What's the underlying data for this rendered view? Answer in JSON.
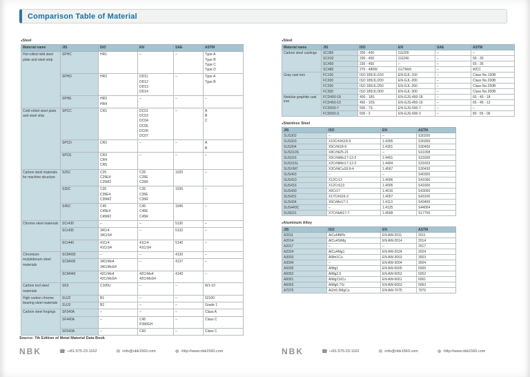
{
  "title": "Comparison Table of Material",
  "left_page": {
    "steel": {
      "section_label": "Steel",
      "headers": [
        "Material name",
        "JIS",
        "ISO",
        "EN",
        "SAE",
        "ASTM"
      ],
      "groups": [
        {
          "label": "Hot-rolled mild steel plate and steel strip",
          "rows": [
            [
              "SPHC",
              "HR1",
              "–",
              "–",
              "Type A\nType B\nType C\nType D"
            ],
            [
              "SPHD",
              "HR2",
              "DD11\nDD12\nDD13\nDD14",
              "–",
              "Type A\nType B"
            ],
            [
              "SPHE",
              "HR3\nHR4",
              "–",
              "–",
              "–"
            ]
          ]
        },
        {
          "label": "Cold-rolled steel plate and steel strip",
          "rows": [
            [
              "SPCC",
              "CR1",
              "DC01\nDC03\nDC04\nDC05\nDC06\nDC07",
              "–",
              "A\nB\nC"
            ],
            [
              "SPCD",
              "CR2",
              "–",
              "–",
              "A\nB"
            ],
            [
              "SPCE",
              "CR3\nCR4\nCR5",
              "–",
              "–",
              "–"
            ]
          ]
        },
        {
          "label": "Carbon steel materials for machine structure",
          "rows": [
            [
              "S25C",
              "C25\nC25E4\nC25M2",
              "C25\nC25E\nC25R",
              "1025",
              "–"
            ],
            [
              "S35C",
              "C35\nC35E4\nC35M2",
              "C35\nC35E\nC35R",
              "1035",
              "–"
            ],
            [
              "S45C",
              "C45\nC45E4\nC45M2",
              "C45\nC45E\nC45R",
              "1045",
              "–"
            ]
          ]
        },
        {
          "label": "Chrome steel materials",
          "rows": [
            [
              "SCr430",
              "–",
              "–",
              "5130",
              "–"
            ],
            [
              "SCr435",
              "34Cr4\n34CrS4",
              "–",
              "5132",
              "–"
            ],
            [
              "SCr440",
              "41Cr4\n41CrS4",
              "41Cr4\n41CrS4",
              "5140",
              "–"
            ]
          ]
        },
        {
          "label": "Chromium-molybdenum steel materials",
          "rows": [
            [
              "SCM430",
              "–",
              "–",
              "4130",
              "–"
            ],
            [
              "SCM435",
              "34CrMo4\n34CrMoS4",
              "–",
              "4137",
              "–"
            ],
            [
              "SCM440",
              "42CrMo4\n42CrMoS4",
              "42CrMo4\n42CrMoS4",
              "4140",
              "–"
            ]
          ]
        },
        {
          "label": "Carbon tool steel materials",
          "rows": [
            [
              "SK3",
              "C105U",
              "–",
              "–",
              "W1-10"
            ]
          ]
        },
        {
          "label": "High carbon chrome bearing steel materials",
          "rows": [
            [
              "SUJ2",
              "B1",
              "–",
              "–",
              "52100"
            ],
            [
              "SUJ3",
              "B2",
              "–",
              "–",
              "Grade 1"
            ]
          ]
        },
        {
          "label": "Carbon steel forgings",
          "rows": [
            [
              "SF340A",
              "–",
              "–",
              "–",
              "Class A"
            ],
            [
              "SF440A",
              "–",
              "C45\nP280GH",
              "–",
              "Class C"
            ],
            [
              "SF540A",
              "–",
              "C60",
              "–",
              "Class C"
            ]
          ]
        }
      ]
    }
  },
  "right_page": {
    "steel": {
      "section_label": "Steel",
      "headers": [
        "Material name",
        "JIS",
        "ISO",
        "EN",
        "SAE",
        "ASTM"
      ],
      "groups": [
        {
          "label": "Carbon steel castings",
          "rows": [
            [
              "SC360",
              "200 - 400",
              "GS200",
              "–",
              "–"
            ],
            [
              "SC410",
              "200 - 400",
              "GS240",
              "–",
              "60 - 30"
            ],
            [
              "SC450",
              "230 - 450",
              "–",
              "–",
              "65 - 35"
            ],
            [
              "SC480",
              "270 - 480W",
              "G17Mn5",
              "–",
              "WCC"
            ]
          ]
        },
        {
          "label": "Gray cast iron",
          "rows": [
            [
              "FC150",
              "ISO 185/JL/150",
              "EN-GJL-150",
              "–",
              "Class No.150B"
            ],
            [
              "FC200",
              "ISO 185/JL/200",
              "EN-GJL-200",
              "–",
              "Class No.200B"
            ],
            [
              "FC250",
              "ISO 185/JL/250",
              "EN-GJL-250",
              "–",
              "Class No.250B"
            ],
            [
              "FC300",
              "ISO 185/JL/300",
              "EN-GJL-300",
              "–",
              "Class No.300B"
            ]
          ]
        },
        {
          "label": "Nodular graphite cast iron",
          "rows": [
            [
              "FCD400-18",
              "400 - 18S",
              "EN-GJS-400-18",
              "–",
              "60 - 40 - 18"
            ],
            [
              "FCD450-10",
              "450 - 10S",
              "EN-GJS-450-10",
              "–",
              "65 - 45 - 12"
            ],
            [
              "FCD500-7",
              "500 - 7S",
              "EN-GJS-500-7",
              "–",
              "–"
            ],
            [
              "FCD600-3",
              "600 - 3",
              "EN-GJS-600-3",
              "–",
              "80 - 55 - 06"
            ]
          ]
        }
      ]
    },
    "stainless": {
      "section_label": "Stainless Steel",
      "headers": [
        "JIS",
        "ISO",
        "EN",
        "ASTM"
      ],
      "rows": [
        [
          "SUS302",
          "–",
          "–",
          "S30200"
        ],
        [
          "SUS303",
          "X10CrNiS18-9",
          "1.4305",
          "S30300"
        ],
        [
          "SUS304",
          "X5CrNi18-9",
          "1.4301",
          "S30400"
        ],
        [
          "SUS310S",
          "X8CrNi25-21",
          "–",
          "S31008"
        ],
        [
          "SUS316",
          "X5CrNiMo17-12-2",
          "1.4401",
          "S31600"
        ],
        [
          "SUS316L",
          "X2CrNiMo17-12-2",
          "1.4404",
          "S31603"
        ],
        [
          "SUSXM7",
          "X3CrNiCu18-9-4",
          "1.4567",
          "S30430"
        ],
        [
          "SUS403",
          "–",
          "–",
          "S40300"
        ],
        [
          "SUS410",
          "X12Cr13",
          "1.4006",
          "S41000"
        ],
        [
          "SUS416",
          "X12CrS13",
          "1.4005",
          "S41600"
        ],
        [
          "SUS430",
          "X6Cr17",
          "1.4016",
          "S43000"
        ],
        [
          "SUS431",
          "X17CrNi16-2",
          "1.4057",
          "S43100"
        ],
        [
          "SUS434",
          "X6CrMo17-1",
          "1.4113",
          "S43400"
        ],
        [
          "SUS440C",
          "–",
          "1.4125",
          "S44004"
        ],
        [
          "SUS631",
          "X7CrNiAl17-7",
          "1.4568",
          "S17700"
        ]
      ]
    },
    "aluminum": {
      "section_label": "Aluminum Alloy",
      "headers": [
        "JIS",
        "ISO",
        "EN",
        "ASTM"
      ],
      "rows": [
        [
          "A2011",
          "AlCu6BiPb",
          "EN AW-2011",
          "2011"
        ],
        [
          "A2014",
          "AlCu4SiMg",
          "EN AW-2014",
          "2014"
        ],
        [
          "A2017",
          "–",
          "–",
          "2017"
        ],
        [
          "A2024",
          "AlCu4Mg1",
          "EN AW-2024",
          "2024"
        ],
        [
          "A3003",
          "AlMn1Cu",
          "EN AW-3003",
          "3003"
        ],
        [
          "A3004",
          "–",
          "EN AW-3004",
          "3004"
        ],
        [
          "A5005",
          "AlMg1",
          "EN AW-5005",
          "5005"
        ],
        [
          "A5052",
          "AlMg2.5",
          "EN AW-5052",
          "5052"
        ],
        [
          "A6061",
          "AlMg1SiCu",
          "EN AW-6061",
          "6061"
        ],
        [
          "A6063",
          "AlMg0.7Si",
          "EN AW-6063",
          "6063"
        ],
        [
          "A7075",
          "AlZn5.5MgCu",
          "EN AW-7075",
          "7075"
        ]
      ]
    }
  },
  "footer": {
    "source": "Source: 7th Edition of Metal Material Data Book",
    "logo": "NBK",
    "phone": "+81-575-23-1162",
    "email": "info@nbk1560.com",
    "web": "http://www.nbk1560.com",
    "phone_icon": "☎",
    "email_icon": "✉",
    "web_icon": "⊕"
  },
  "colors": {
    "accent": "#2d74a2",
    "title_text": "#16719e",
    "header_row": "#a5c4d0",
    "label_cell": "#c6dbe2"
  }
}
